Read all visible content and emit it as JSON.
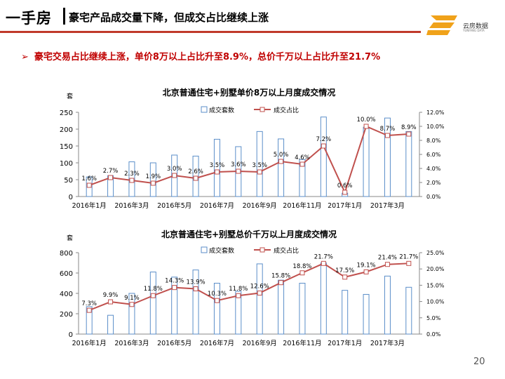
{
  "header": {
    "title_main": "一手房",
    "title_sub": "豪宅产品成交量下降，但成交占比继续上涨",
    "logo_text": "云房数据",
    "logo_sub": "YUNFANG DATA",
    "accent_color": "#c0392b"
  },
  "headline": {
    "arrow": "➢",
    "text": "豪宅交易占比继续上涨，单价8万以上占比升至8.9%，总价千万以上占比升至21.7%"
  },
  "page_number": "20",
  "chart_data": [
    {
      "type": "bar",
      "title": "北京普通住宅+别墅单价8万以上月度成交情况",
      "unit_left": "套",
      "categories": [
        "2016年1月",
        "2016年2月",
        "2016年3月",
        "2016年4月",
        "2016年5月",
        "2016年6月",
        "2016年7月",
        "2016年8月",
        "2016年9月",
        "2016年10月",
        "2016年11月",
        "2016年12月",
        "2017年1月",
        "2017年2月",
        "2017年3月",
        "2017年4月"
      ],
      "x_tick_labels": [
        "2016年1月",
        "2016年3月",
        "2016年5月",
        "2016年7月",
        "2016年9月",
        "2016年11月",
        "2017年1月",
        "2017年3月"
      ],
      "series": [
        {
          "name": "成交套数",
          "kind": "bar",
          "axis": "left",
          "color": "#5b8ec9",
          "values": [
            58,
            62,
            103,
            100,
            123,
            120,
            170,
            148,
            193,
            171,
            110,
            236,
            10,
            206,
            233,
            193
          ]
        },
        {
          "name": "成交占比",
          "kind": "line",
          "axis": "right",
          "color": "#c0504d",
          "values": [
            1.6,
            2.7,
            2.3,
            1.9,
            3.0,
            2.6,
            3.5,
            3.6,
            3.5,
            5.0,
            4.6,
            7.2,
            0.6,
            10.0,
            8.7,
            8.9
          ],
          "labels": [
            "1.6%",
            "2.7%",
            "2.3%",
            "1.9%",
            "3.0%",
            "2.6%",
            "3.5%",
            "3.6%",
            "3.5%",
            "5.0%",
            "4.6%",
            "7.2%",
            "0.6%",
            "10.0%",
            "8.7%",
            "8.9%"
          ]
        }
      ],
      "ylim_left": [
        0,
        250
      ],
      "yticks_left": [
        "0",
        "50",
        "100",
        "150",
        "200",
        "250"
      ],
      "ylim_right": [
        0,
        12
      ],
      "yticks_right": [
        "0.0%",
        "2.0%",
        "4.0%",
        "6.0%",
        "8.0%",
        "10.0%",
        "12.0%"
      ],
      "legend": "top-center"
    },
    {
      "type": "bar",
      "title": "北京普通住宅+别墅总价千万以上月度成交情况",
      "unit_left": "套",
      "categories": [
        "2016年1月",
        "2016年2月",
        "2016年3月",
        "2016年4月",
        "2016年5月",
        "2016年6月",
        "2016年7月",
        "2016年8月",
        "2016年9月",
        "2016年10月",
        "2016年11月",
        "2016年12月",
        "2017年1月",
        "2017年2月",
        "2017年3月",
        "2017年4月"
      ],
      "x_tick_labels": [
        "2016年1月",
        "2016年3月",
        "2016年5月",
        "2016年7月",
        "2016年9月",
        "2016年11月",
        "2017年1月",
        "2017年3月"
      ],
      "series": [
        {
          "name": "成交套数",
          "kind": "bar",
          "axis": "left",
          "color": "#5b8ec9",
          "values": [
            270,
            185,
            400,
            610,
            560,
            630,
            500,
            420,
            690,
            530,
            500,
            700,
            430,
            390,
            570,
            460
          ]
        },
        {
          "name": "成交占比",
          "kind": "line",
          "axis": "right",
          "color": "#c0504d",
          "values": [
            7.3,
            9.9,
            9.1,
            11.8,
            14.3,
            13.9,
            10.3,
            11.8,
            12.6,
            15.8,
            18.8,
            21.7,
            17.5,
            19.1,
            21.4,
            21.7
          ],
          "labels": [
            "7.3%",
            "9.9%",
            "9.1%",
            "11.8%",
            "14.3%",
            "13.9%",
            "10.3%",
            "11.8%",
            "12.6%",
            "15.8%",
            "18.8%",
            "21.7%",
            "17.5%",
            "19.1%",
            "21.4%",
            "21.7%"
          ]
        }
      ],
      "ylim_left": [
        0,
        800
      ],
      "yticks_left": [
        "0",
        "200",
        "400",
        "600",
        "800"
      ],
      "ylim_right": [
        0,
        25
      ],
      "yticks_right": [
        "0.0%",
        "5.0%",
        "10.0%",
        "15.0%",
        "20.0%",
        "25.0%"
      ],
      "legend": "top-center"
    }
  ]
}
